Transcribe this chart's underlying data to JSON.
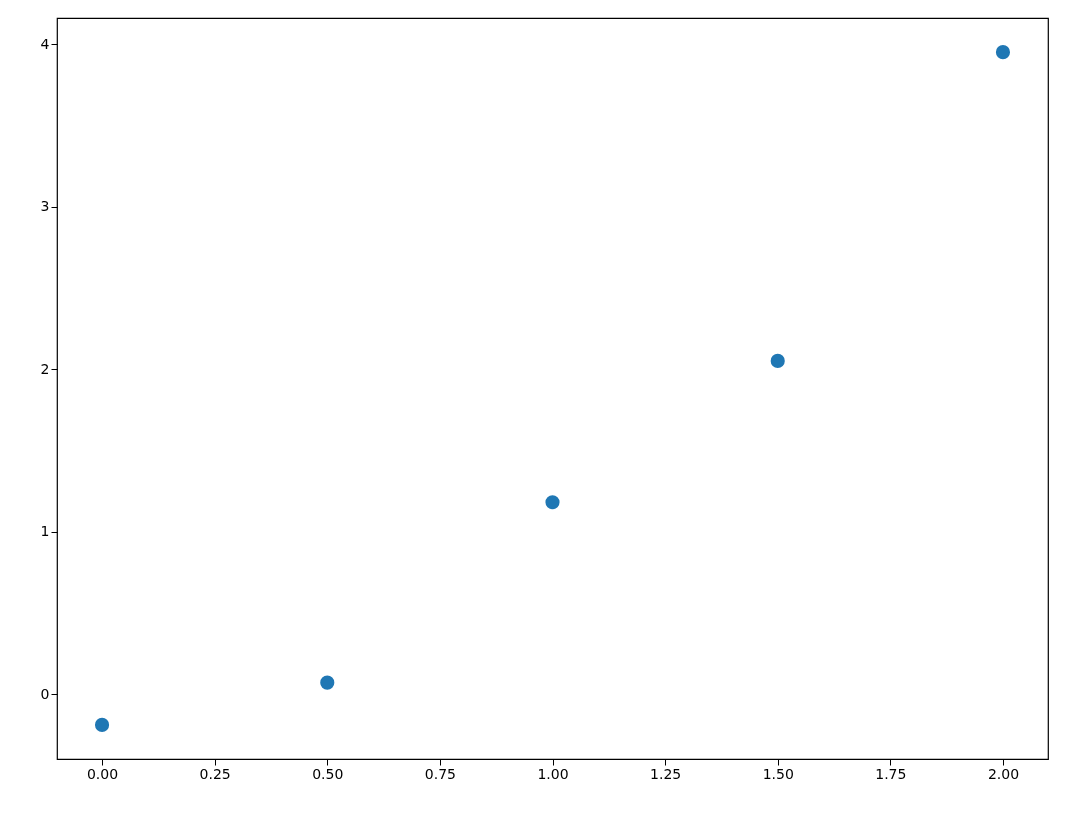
{
  "chart_data": {
    "type": "scatter",
    "x": [
      0,
      0.5,
      1,
      1.5,
      2
    ],
    "series": [
      {
        "color": "#1f77b4",
        "values": [
          -0.19,
          0.07,
          1.18,
          2.05,
          3.95
        ]
      }
    ],
    "xlim": [
      -0.1,
      2.1
    ],
    "xticks": [
      {
        "value": 0,
        "label": "0.00"
      },
      {
        "value": 0.25,
        "label": "0.25"
      },
      {
        "value": 0.5,
        "label": "0.50"
      },
      {
        "value": 0.75,
        "label": "0.75"
      },
      {
        "value": 1,
        "label": "1.00"
      },
      {
        "value": 1.25,
        "label": "1.25"
      },
      {
        "value": 1.5,
        "label": "1.50"
      },
      {
        "value": 1.75,
        "label": "1.75"
      },
      {
        "value": 2,
        "label": "2.00"
      }
    ],
    "ylim": [
      -0.4,
      4.16
    ],
    "yticks": [
      0,
      1,
      2,
      3,
      4
    ],
    "grid": false,
    "marker": "circle"
  }
}
